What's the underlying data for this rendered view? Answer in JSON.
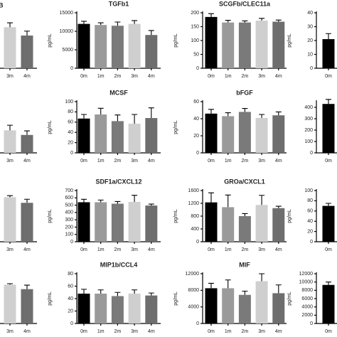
{
  "panel_label": "B",
  "chart_data": [
    {
      "type": "bar",
      "categories": [
        "3m",
        "4m"
      ],
      "values": [
        74,
        59
      ],
      "errors": [
        8,
        8
      ],
      "colors": [
        "#cfcfcf",
        "#6e6e6e"
      ],
      "ylim": [
        0,
        100
      ]
    },
    {
      "type": "bar",
      "title": "TGFb1",
      "y_label": "pg/mL",
      "categories": [
        "0m",
        "1m",
        "2m",
        "3m",
        "4m"
      ],
      "values": [
        12000,
        11700,
        11500,
        12000,
        9000
      ],
      "errors": [
        700,
        600,
        1000,
        900,
        1200
      ],
      "colors": [
        "#000000",
        "#9a9a9a",
        "#7a7a7a",
        "#cfcfcf",
        "#6e6e6e"
      ],
      "ylim": [
        0,
        15000
      ],
      "yticks": [
        0,
        5000,
        10000,
        15000
      ]
    },
    {
      "type": "bar",
      "title": "SCGFb/CLEC11a",
      "y_label": "pg/mL",
      "categories": [
        "0m",
        "1m",
        "2m",
        "3m",
        "4m"
      ],
      "values": [
        185,
        165,
        165,
        172,
        168
      ],
      "errors": [
        12,
        8,
        6,
        8,
        6
      ],
      "colors": [
        "#000000",
        "#9a9a9a",
        "#7a7a7a",
        "#cfcfcf",
        "#6e6e6e"
      ],
      "ylim": [
        0,
        200
      ],
      "yticks": [
        0,
        50,
        100,
        150,
        200
      ]
    },
    {
      "type": "bar",
      "y_label": "pg/mL",
      "categories": [
        "0m"
      ],
      "values": [
        21
      ],
      "errors": [
        4
      ],
      "colors": [
        "#000000"
      ],
      "ylim": [
        0,
        40
      ],
      "yticks": [
        0,
        10,
        20,
        30,
        40
      ]
    },
    {
      "type": "bar",
      "categories": [
        "3m",
        "4m"
      ],
      "values": [
        44,
        35
      ],
      "errors": [
        10,
        8
      ],
      "colors": [
        "#cfcfcf",
        "#6e6e6e"
      ],
      "ylim": [
        0,
        100
      ]
    },
    {
      "type": "bar",
      "title": "MCSF",
      "y_label": "pg/mL",
      "categories": [
        "0m",
        "1m",
        "2m",
        "3m",
        "4m"
      ],
      "values": [
        67,
        75,
        62,
        57,
        68
      ],
      "errors": [
        8,
        12,
        12,
        18,
        20
      ],
      "colors": [
        "#000000",
        "#9a9a9a",
        "#7a7a7a",
        "#cfcfcf",
        "#6e6e6e"
      ],
      "ylim": [
        0,
        100
      ],
      "yticks": [
        0,
        20,
        40,
        60,
        80,
        100
      ]
    },
    {
      "type": "bar",
      "title": "bFGF",
      "y_label": "pg/mL",
      "categories": [
        "0m",
        "1m",
        "2m",
        "3m",
        "4m"
      ],
      "values": [
        46,
        43,
        48,
        41,
        44
      ],
      "errors": [
        5,
        4,
        4,
        4,
        4
      ],
      "colors": [
        "#000000",
        "#9a9a9a",
        "#7a7a7a",
        "#cfcfcf",
        "#6e6e6e"
      ],
      "ylim": [
        0,
        60
      ],
      "yticks": [
        0,
        20,
        40,
        60
      ]
    },
    {
      "type": "bar",
      "categories": [
        "0m"
      ],
      "values": [
        430
      ],
      "errors": [
        40
      ],
      "colors": [
        "#000000"
      ],
      "ylim": [
        0,
        450
      ],
      "yticks": [
        0,
        100,
        200,
        300,
        400
      ]
    },
    {
      "type": "bar",
      "categories": [
        "3m",
        "4m"
      ],
      "values": [
        87,
        76
      ],
      "errors": [
        3,
        7
      ],
      "colors": [
        "#cfcfcf",
        "#6e6e6e"
      ],
      "ylim": [
        0,
        100
      ]
    },
    {
      "type": "bar",
      "title": "SDF1a/CXCL12",
      "y_label": "pg/mL",
      "categories": [
        "0m",
        "1m",
        "2m",
        "3m",
        "4m"
      ],
      "values": [
        540,
        540,
        520,
        545,
        495
      ],
      "errors": [
        40,
        30,
        30,
        90,
        20
      ],
      "colors": [
        "#000000",
        "#9a9a9a",
        "#7a7a7a",
        "#cfcfcf",
        "#6e6e6e"
      ],
      "ylim": [
        0,
        700
      ],
      "yticks": [
        0,
        100,
        200,
        300,
        400,
        500,
        600,
        700
      ]
    },
    {
      "type": "bar",
      "title": "GROa/CXCL1",
      "y_label": "pg/mL",
      "categories": [
        "0m",
        "1m",
        "2m",
        "3m",
        "4m"
      ],
      "values": [
        1230,
        1080,
        800,
        1150,
        1050
      ],
      "errors": [
        300,
        380,
        80,
        300,
        60
      ],
      "colors": [
        "#000000",
        "#9a9a9a",
        "#7a7a7a",
        "#cfcfcf",
        "#6e6e6e"
      ],
      "ylim": [
        0,
        1600
      ],
      "yticks": [
        0,
        400,
        800,
        1200,
        1600
      ]
    },
    {
      "type": "bar",
      "y_label": "pg/mL",
      "categories": [
        "0m"
      ],
      "values": [
        70
      ],
      "errors": [
        5
      ],
      "colors": [
        "#000000"
      ],
      "ylim": [
        0,
        100
      ],
      "yticks": [
        0,
        20,
        40,
        60,
        80,
        100
      ]
    },
    {
      "type": "bar",
      "categories": [
        "3m",
        "4m"
      ],
      "values": [
        78,
        69
      ],
      "errors": [
        2,
        8
      ],
      "colors": [
        "#cfcfcf",
        "#6e6e6e"
      ],
      "ylim": [
        0,
        100
      ]
    },
    {
      "type": "bar",
      "title": "MIP1b/CCL4",
      "y_label": "pg/mL",
      "categories": [
        "0m",
        "1m",
        "2m",
        "3m",
        "4m"
      ],
      "values": [
        48,
        48,
        44,
        48,
        45
      ],
      "errors": [
        7,
        6,
        6,
        6,
        4
      ],
      "colors": [
        "#000000",
        "#9a9a9a",
        "#7a7a7a",
        "#cfcfcf",
        "#6e6e6e"
      ],
      "ylim": [
        0,
        80
      ],
      "yticks": [
        0,
        20,
        40,
        60,
        80
      ]
    },
    {
      "type": "bar",
      "title": "MIF",
      "y_label": "pg/mL",
      "categories": [
        "0m",
        "1m",
        "2m",
        "3m",
        "4m"
      ],
      "values": [
        8500,
        8500,
        6900,
        10200,
        7300
      ],
      "errors": [
        1200,
        2000,
        900,
        1800,
        2000
      ],
      "colors": [
        "#000000",
        "#9a9a9a",
        "#7a7a7a",
        "#cfcfcf",
        "#6e6e6e"
      ],
      "ylim": [
        0,
        12000
      ],
      "yticks": [
        0,
        4000,
        8000,
        12000
      ]
    },
    {
      "type": "bar",
      "y_label": "pg/mL",
      "categories": [
        "0m"
      ],
      "values": [
        9300
      ],
      "errors": [
        700
      ],
      "colors": [
        "#000000"
      ],
      "ylim": [
        0,
        12000
      ],
      "yticks": [
        0,
        2000,
        4000,
        6000,
        8000,
        10000,
        12000
      ]
    }
  ]
}
